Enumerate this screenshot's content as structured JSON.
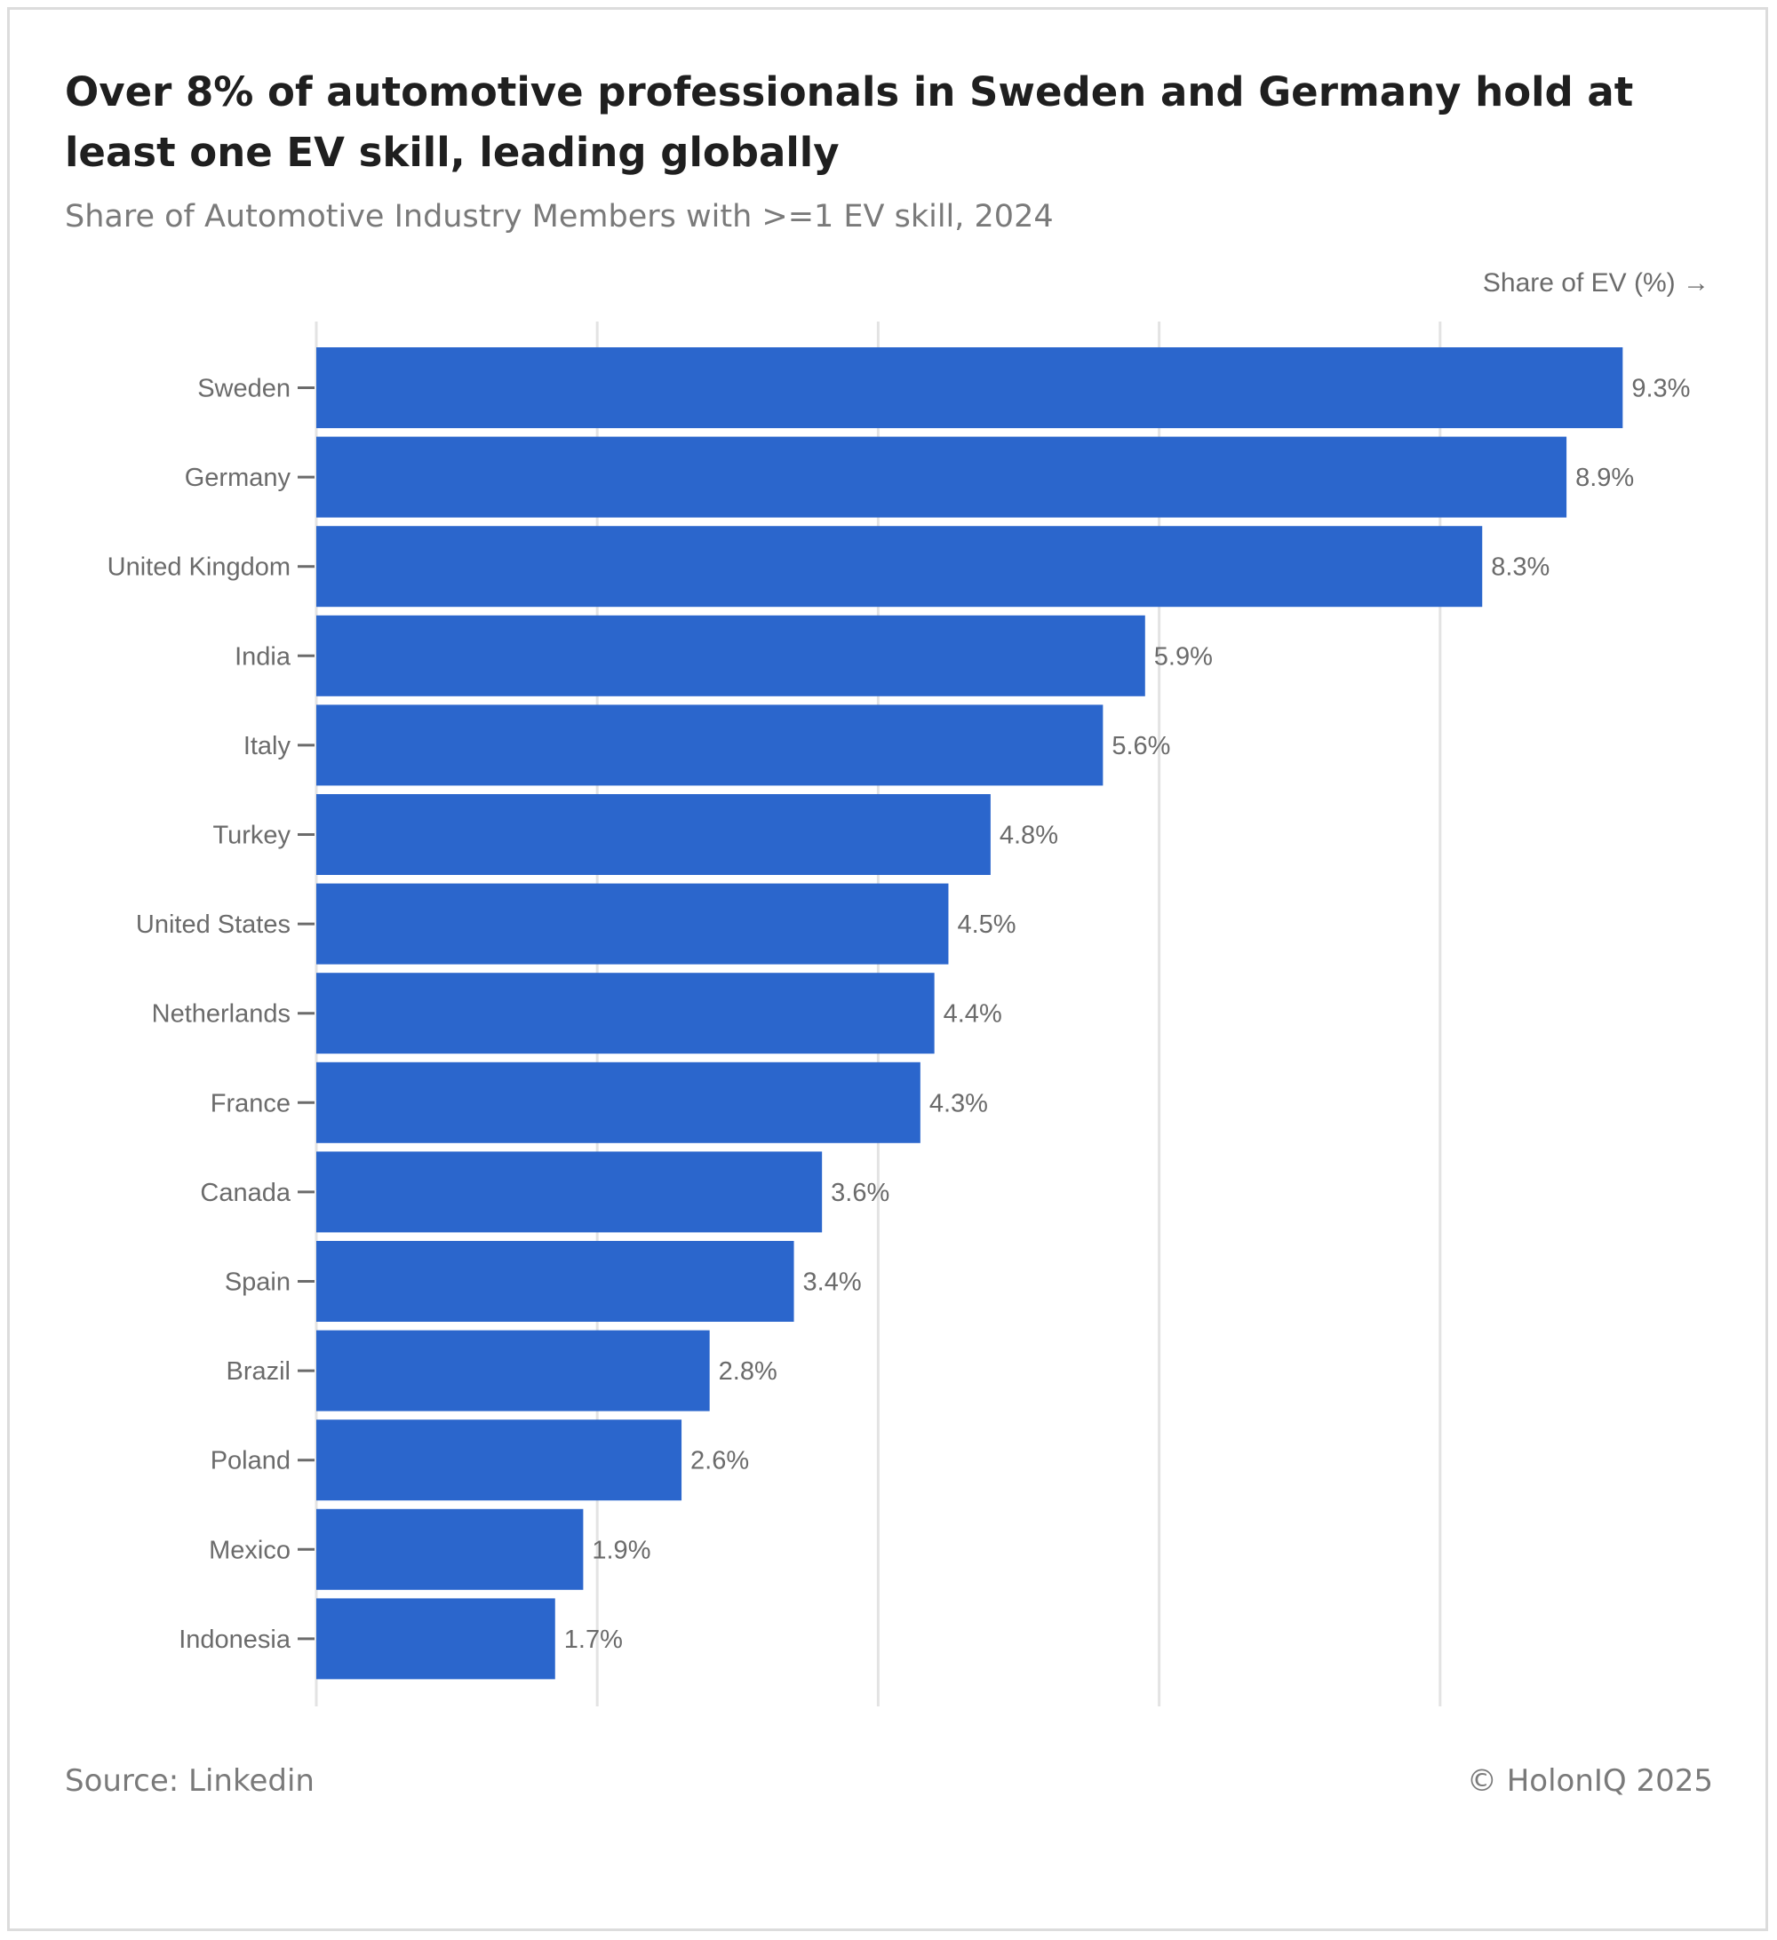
{
  "title": "Over 8% of automotive professionals in Sweden and Germany hold at least one EV skill, leading globally",
  "subtitle": "Share of Automotive Industry Members with >=1 EV skill, 2024",
  "footer": {
    "source": "Source: Linkedin",
    "copyright": "© HolonIQ 2025"
  },
  "colors": {
    "bar": "#2b66cc",
    "grid": "#e3e3e3",
    "text": "#6b6b6b"
  },
  "chart_data": {
    "type": "bar",
    "orientation": "horizontal",
    "title": "Over 8% of automotive professionals in Sweden and Germany hold at least one EV skill, leading globally",
    "xlabel": "Share of EV (%) →",
    "ylabel": "",
    "xlim": [
      0,
      10
    ],
    "grid_ticks": [
      0,
      2,
      4,
      6,
      8
    ],
    "grid": true,
    "categories": [
      "Sweden",
      "Germany",
      "United Kingdom",
      "India",
      "Italy",
      "Turkey",
      "United States",
      "Netherlands",
      "France",
      "Canada",
      "Spain",
      "Brazil",
      "Poland",
      "Mexico",
      "Indonesia"
    ],
    "values": [
      9.3,
      8.9,
      8.3,
      5.9,
      5.6,
      4.8,
      4.5,
      4.4,
      4.3,
      3.6,
      3.4,
      2.8,
      2.6,
      1.9,
      1.7
    ],
    "value_labels": [
      "9.3%",
      "8.9%",
      "8.3%",
      "5.9%",
      "5.6%",
      "4.8%",
      "4.5%",
      "4.4%",
      "4.3%",
      "3.6%",
      "3.4%",
      "2.8%",
      "2.6%",
      "1.9%",
      "1.7%"
    ]
  }
}
